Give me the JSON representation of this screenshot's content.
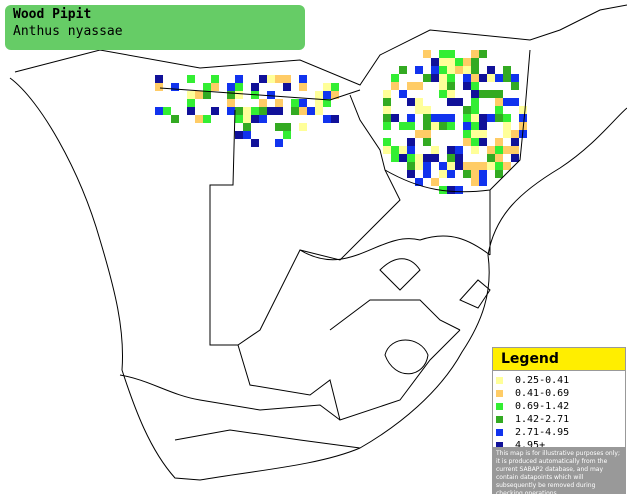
{
  "header": {
    "title": "Wood Pipit",
    "subtitle": "Anthus nyassae"
  },
  "legend": {
    "title": "Legend",
    "items": [
      {
        "label": "0.25-0.41",
        "color": "#ffff99"
      },
      {
        "label": "0.41-0.69",
        "color": "#ffcc66"
      },
      {
        "label": "0.69-1.42",
        "color": "#33ee33"
      },
      {
        "label": "1.42-2.71",
        "color": "#33aa22"
      },
      {
        "label": "2.71-4.95",
        "color": "#1133ee"
      },
      {
        "label": "4.95+",
        "color": "#111199"
      }
    ],
    "disclaimer": "This map is for illustrative purposes only; it is produced automatically from the current SABAP2 database, and may contain datapoints which will subsequently be removed during checking operations."
  }
}
